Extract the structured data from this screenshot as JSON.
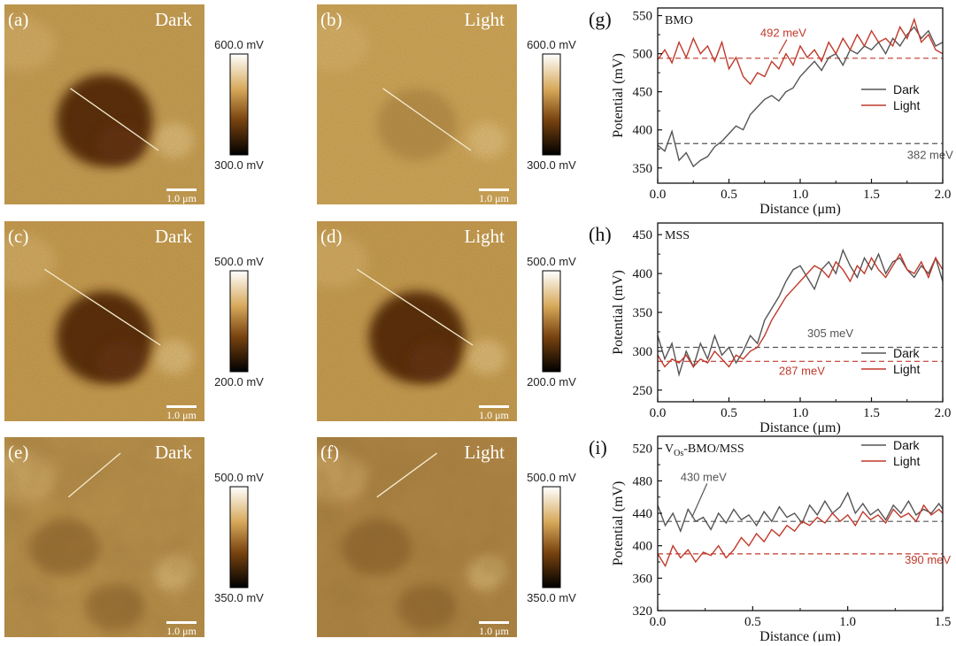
{
  "afm_panels": [
    {
      "letter": "(a)",
      "condition": "Dark",
      "scale": "1.0 μm",
      "colorbar": {
        "max": "600.0 mV",
        "min": "300.0 mV"
      },
      "spot": "dark-large",
      "base": "#c9a055",
      "line": [
        [
          0.33,
          0.42
        ],
        [
          0.77,
          0.73
        ]
      ]
    },
    {
      "letter": "(b)",
      "condition": "Light",
      "scale": "1.0 μm",
      "colorbar": {
        "max": "600.0 mV",
        "min": "300.0 mV"
      },
      "spot": "faint",
      "base": "#d2a95c",
      "line": [
        [
          0.33,
          0.42
        ],
        [
          0.77,
          0.73
        ]
      ]
    },
    {
      "letter": "(c)",
      "condition": "Dark",
      "scale": "1.0 μm",
      "colorbar": {
        "max": "500.0 mV",
        "min": "200.0 mV"
      },
      "spot": "dark-large",
      "base": "#c99e52",
      "line": [
        [
          0.2,
          0.24
        ],
        [
          0.78,
          0.62
        ]
      ]
    },
    {
      "letter": "(d)",
      "condition": "Light",
      "scale": "1.0 μm",
      "colorbar": {
        "max": "500.0 mV",
        "min": "200.0 mV"
      },
      "spot": "dark-large",
      "base": "#c99e52",
      "line": [
        [
          0.2,
          0.24
        ],
        [
          0.78,
          0.62
        ]
      ]
    },
    {
      "letter": "(e)",
      "condition": "Dark",
      "scale": "1.0 μm",
      "colorbar": {
        "max": "500.0 mV",
        "min": "350.0 mV"
      },
      "spot": "mottled",
      "base": "#bf9550",
      "line": [
        [
          0.32,
          0.3
        ],
        [
          0.58,
          0.08
        ]
      ]
    },
    {
      "letter": "(f)",
      "condition": "Light",
      "scale": "1.0 μm",
      "colorbar": {
        "max": "500.0 mV",
        "min": "350.0 mV"
      },
      "spot": "mottled-dark",
      "base": "#b48848",
      "line": [
        [
          0.3,
          0.3
        ],
        [
          0.6,
          0.08
        ]
      ]
    }
  ],
  "chart_data": [
    {
      "type": "line",
      "panel": "(g)",
      "label": "BMO",
      "xlabel": "Distance (μm)",
      "ylabel": "Potential (mV)",
      "xlim": [
        0,
        2.0
      ],
      "ylim": [
        330,
        560
      ],
      "xticks": [
        "0.0",
        "0.5",
        "1.0",
        "1.5",
        "2.0"
      ],
      "yticks": [
        "350",
        "400",
        "450",
        "500",
        "550"
      ],
      "legend": "right",
      "series": [
        {
          "name": "Dark",
          "color": "#555555",
          "x": [
            0,
            0.05,
            0.1,
            0.15,
            0.2,
            0.25,
            0.3,
            0.35,
            0.4,
            0.45,
            0.5,
            0.55,
            0.6,
            0.65,
            0.7,
            0.75,
            0.8,
            0.85,
            0.9,
            0.95,
            1.0,
            1.05,
            1.1,
            1.15,
            1.2,
            1.25,
            1.3,
            1.35,
            1.4,
            1.45,
            1.5,
            1.55,
            1.6,
            1.65,
            1.7,
            1.75,
            1.8,
            1.85,
            1.9,
            1.95,
            2.0
          ],
          "y": [
            380,
            372,
            398,
            360,
            370,
            352,
            360,
            365,
            378,
            385,
            395,
            405,
            400,
            420,
            430,
            440,
            445,
            438,
            450,
            455,
            470,
            480,
            490,
            478,
            495,
            500,
            485,
            505,
            500,
            510,
            505,
            515,
            500,
            520,
            510,
            525,
            535,
            520,
            530,
            510,
            515
          ]
        },
        {
          "name": "Light",
          "color": "#c0392b",
          "x": [
            0,
            0.05,
            0.1,
            0.15,
            0.2,
            0.25,
            0.3,
            0.35,
            0.4,
            0.45,
            0.5,
            0.55,
            0.6,
            0.65,
            0.7,
            0.75,
            0.8,
            0.85,
            0.9,
            0.95,
            1.0,
            1.05,
            1.1,
            1.15,
            1.2,
            1.25,
            1.3,
            1.35,
            1.4,
            1.45,
            1.5,
            1.55,
            1.6,
            1.65,
            1.7,
            1.75,
            1.8,
            1.85,
            1.9,
            1.95,
            2.0
          ],
          "y": [
            492,
            505,
            488,
            515,
            495,
            520,
            500,
            510,
            490,
            515,
            480,
            495,
            470,
            460,
            475,
            470,
            490,
            480,
            500,
            485,
            510,
            495,
            505,
            490,
            515,
            500,
            520,
            505,
            525,
            510,
            530,
            515,
            520,
            510,
            535,
            520,
            545,
            515,
            525,
            505,
            500
          ]
        }
      ],
      "annotations": [
        {
          "text": "492 meV",
          "color": "#c0392b",
          "x": 0.72,
          "y": 522,
          "ref_y": 494,
          "ref_color": "#c0392b",
          "arrow_to": [
            0.85,
            500
          ]
        },
        {
          "text": "382 meV",
          "color": "#555555",
          "x": 1.75,
          "y": 362,
          "ref_y": 382,
          "ref_color": "#555555"
        }
      ]
    },
    {
      "type": "line",
      "panel": "(h)",
      "label": "MSS",
      "xlabel": "Distance (μm)",
      "ylabel": "Potential (mV)",
      "xlim": [
        0,
        2.0
      ],
      "ylim": [
        235,
        465
      ],
      "xticks": [
        "0.0",
        "0.5",
        "1.0",
        "1.5",
        "2.0"
      ],
      "yticks": [
        "250",
        "300",
        "350",
        "400",
        "450"
      ],
      "legend": "bottom-right",
      "series": [
        {
          "name": "Dark",
          "color": "#555555",
          "x": [
            0,
            0.05,
            0.1,
            0.15,
            0.2,
            0.25,
            0.3,
            0.35,
            0.4,
            0.45,
            0.5,
            0.55,
            0.6,
            0.65,
            0.7,
            0.75,
            0.8,
            0.85,
            0.9,
            0.95,
            1.0,
            1.05,
            1.1,
            1.15,
            1.2,
            1.25,
            1.3,
            1.35,
            1.4,
            1.45,
            1.5,
            1.55,
            1.6,
            1.65,
            1.7,
            1.75,
            1.8,
            1.85,
            1.9,
            1.95,
            2.0
          ],
          "y": [
            320,
            290,
            310,
            270,
            300,
            280,
            310,
            290,
            320,
            295,
            305,
            285,
            300,
            320,
            310,
            340,
            355,
            370,
            390,
            405,
            410,
            395,
            380,
            405,
            415,
            400,
            430,
            410,
            395,
            420,
            405,
            425,
            400,
            415,
            420,
            405,
            395,
            410,
            400,
            420,
            390
          ]
        },
        {
          "name": "Light",
          "color": "#c0392b",
          "x": [
            0,
            0.05,
            0.1,
            0.15,
            0.2,
            0.25,
            0.3,
            0.35,
            0.4,
            0.45,
            0.5,
            0.55,
            0.6,
            0.65,
            0.7,
            0.75,
            0.8,
            0.85,
            0.9,
            0.95,
            1.0,
            1.05,
            1.1,
            1.15,
            1.2,
            1.25,
            1.3,
            1.35,
            1.4,
            1.45,
            1.5,
            1.55,
            1.6,
            1.65,
            1.7,
            1.75,
            1.8,
            1.85,
            1.9,
            1.95,
            2.0
          ],
          "y": [
            295,
            280,
            290,
            285,
            295,
            280,
            290,
            285,
            300,
            290,
            280,
            295,
            290,
            300,
            305,
            320,
            340,
            355,
            370,
            380,
            390,
            400,
            410,
            405,
            395,
            415,
            405,
            390,
            410,
            400,
            420,
            405,
            395,
            410,
            425,
            405,
            400,
            415,
            395,
            420,
            405
          ]
        }
      ],
      "annotations": [
        {
          "text": "305 meV",
          "color": "#555555",
          "x": 1.05,
          "y": 318,
          "ref_y": 305,
          "ref_color": "#555555"
        },
        {
          "text": "287 meV",
          "color": "#c0392b",
          "x": 0.85,
          "y": 270,
          "ref_y": 287,
          "ref_color": "#c0392b"
        }
      ]
    },
    {
      "type": "line",
      "panel": "(i)",
      "label_main": "V",
      "label_sub": "Os",
      "label_rest": "-BMO/MSS",
      "xlabel": "Distance (μm)",
      "ylabel": "Potential (mV)",
      "xlim": [
        0,
        1.5
      ],
      "ylim": [
        320,
        535
      ],
      "xticks": [
        "0.0",
        "0.5",
        "1.0",
        "1.5"
      ],
      "yticks": [
        "320",
        "360",
        "400",
        "440",
        "480",
        "520"
      ],
      "legend": "top-right",
      "series": [
        {
          "name": "Dark",
          "color": "#555555",
          "x": [
            0,
            0.04,
            0.08,
            0.12,
            0.16,
            0.2,
            0.24,
            0.28,
            0.32,
            0.36,
            0.4,
            0.44,
            0.48,
            0.52,
            0.56,
            0.6,
            0.64,
            0.68,
            0.72,
            0.76,
            0.8,
            0.84,
            0.88,
            0.92,
            0.96,
            1.0,
            1.04,
            1.08,
            1.12,
            1.16,
            1.2,
            1.24,
            1.28,
            1.32,
            1.36,
            1.4,
            1.44,
            1.48,
            1.5
          ],
          "y": [
            450,
            425,
            440,
            418,
            445,
            430,
            435,
            420,
            440,
            428,
            445,
            432,
            438,
            425,
            442,
            430,
            448,
            435,
            440,
            428,
            450,
            438,
            455,
            440,
            448,
            465,
            440,
            452,
            438,
            445,
            432,
            450,
            440,
            455,
            438,
            445,
            440,
            452,
            445
          ]
        },
        {
          "name": "Light",
          "color": "#c0392b",
          "x": [
            0,
            0.04,
            0.08,
            0.12,
            0.16,
            0.2,
            0.24,
            0.28,
            0.32,
            0.36,
            0.4,
            0.44,
            0.48,
            0.52,
            0.56,
            0.6,
            0.64,
            0.68,
            0.72,
            0.76,
            0.8,
            0.84,
            0.88,
            0.92,
            0.96,
            1.0,
            1.04,
            1.08,
            1.12,
            1.16,
            1.2,
            1.24,
            1.28,
            1.32,
            1.36,
            1.4,
            1.44,
            1.48,
            1.5
          ],
          "y": [
            390,
            375,
            400,
            385,
            395,
            380,
            392,
            388,
            400,
            385,
            395,
            410,
            400,
            415,
            405,
            420,
            412,
            425,
            418,
            430,
            425,
            435,
            428,
            440,
            430,
            438,
            425,
            442,
            432,
            438,
            428,
            445,
            435,
            440,
            430,
            450,
            438,
            445,
            440
          ]
        }
      ],
      "annotations": [
        {
          "text": "430 meV",
          "color": "#555555",
          "x": 0.12,
          "y": 480,
          "ref_y": 430,
          "ref_color": "#555555",
          "arrow_to": [
            0.18,
            435
          ]
        },
        {
          "text": "390 meV",
          "color": "#c0392b",
          "x": 1.3,
          "y": 378,
          "ref_y": 390,
          "ref_color": "#c0392b"
        }
      ]
    }
  ]
}
